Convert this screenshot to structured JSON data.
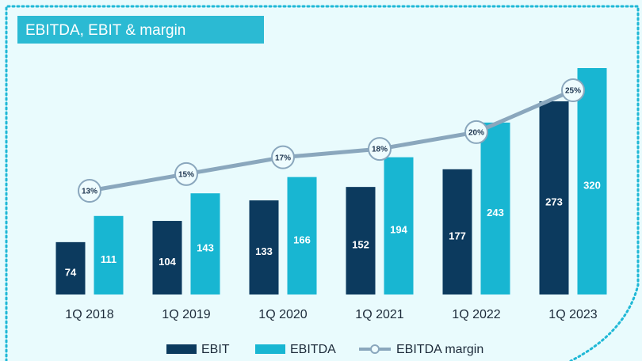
{
  "chart_data": {
    "type": "bar",
    "title": "EBITDA, EBIT & margin",
    "categories": [
      "1Q 2018",
      "1Q 2019",
      "1Q 2020",
      "1Q 2021",
      "1Q 2022",
      "1Q 2023"
    ],
    "series": [
      {
        "name": "EBIT",
        "color": "#0c3a5e",
        "values": [
          74,
          104,
          133,
          152,
          177,
          273
        ]
      },
      {
        "name": "EBITDA",
        "color": "#18b6d2",
        "values": [
          111,
          143,
          166,
          194,
          243,
          320
        ]
      },
      {
        "name": "EBITDA margin",
        "color": "#8aa7bd",
        "type": "line",
        "values": [
          13,
          15,
          17,
          18,
          20,
          25
        ],
        "value_labels": [
          "13%",
          "15%",
          "17%",
          "18%",
          "20%",
          "25%"
        ]
      }
    ]
  }
}
